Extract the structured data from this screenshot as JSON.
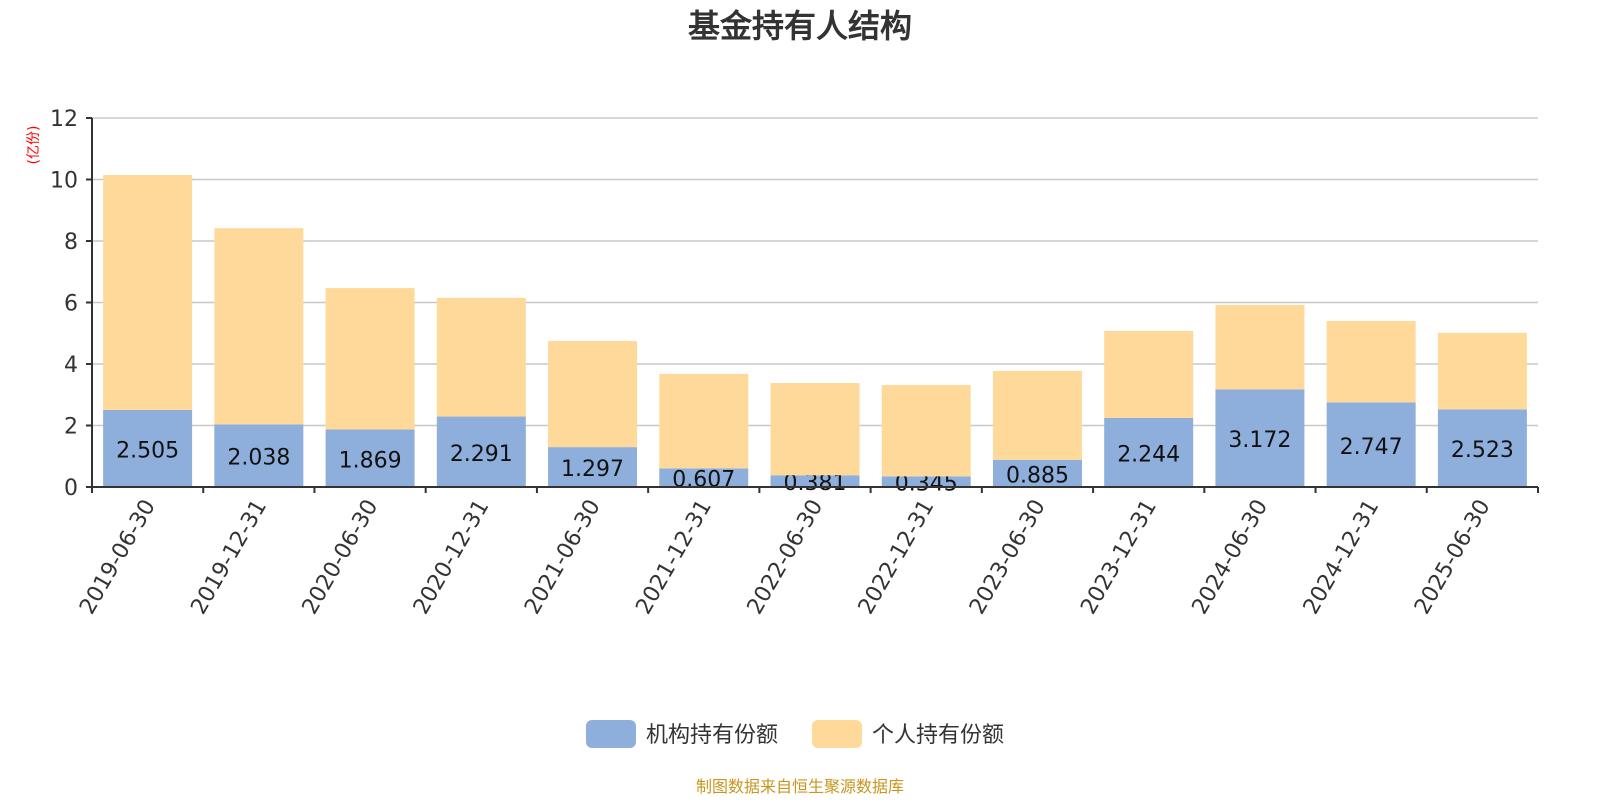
{
  "chart_data": {
    "type": "bar",
    "stacked": true,
    "title": "基金持有人结构",
    "ylabel": "(亿份)",
    "xlabel": "",
    "ylim": [
      0,
      12
    ],
    "yticks": [
      0,
      2,
      4,
      6,
      8,
      10,
      12
    ],
    "grid": true,
    "legend_position": "bottom-center",
    "categories": [
      "2019-06-30",
      "2019-12-31",
      "2020-06-30",
      "2020-12-31",
      "2021-06-30",
      "2021-12-31",
      "2022-06-30",
      "2022-12-31",
      "2023-06-30",
      "2023-12-31",
      "2024-06-30",
      "2024-12-31",
      "2025-06-30"
    ],
    "series": [
      {
        "name": "机构持有份额",
        "color": "#8eaedb",
        "show_labels": true,
        "values": [
          2.505,
          2.038,
          1.869,
          2.291,
          1.297,
          0.607,
          0.381,
          0.345,
          0.885,
          2.244,
          3.172,
          2.747,
          2.523
        ]
      },
      {
        "name": "个人持有份额",
        "color": "#ffd99a",
        "show_labels": false,
        "values": [
          7.64,
          6.38,
          4.6,
          3.86,
          3.45,
          3.07,
          3.0,
          2.97,
          2.89,
          2.83,
          2.75,
          2.65,
          2.49
        ]
      }
    ],
    "source_note": "制图数据来自恒生聚源数据库"
  },
  "colors": {
    "ylabel": "#ff0000",
    "source": "#c8961e",
    "grid": "#c8c8c8",
    "axis": "#333333"
  }
}
